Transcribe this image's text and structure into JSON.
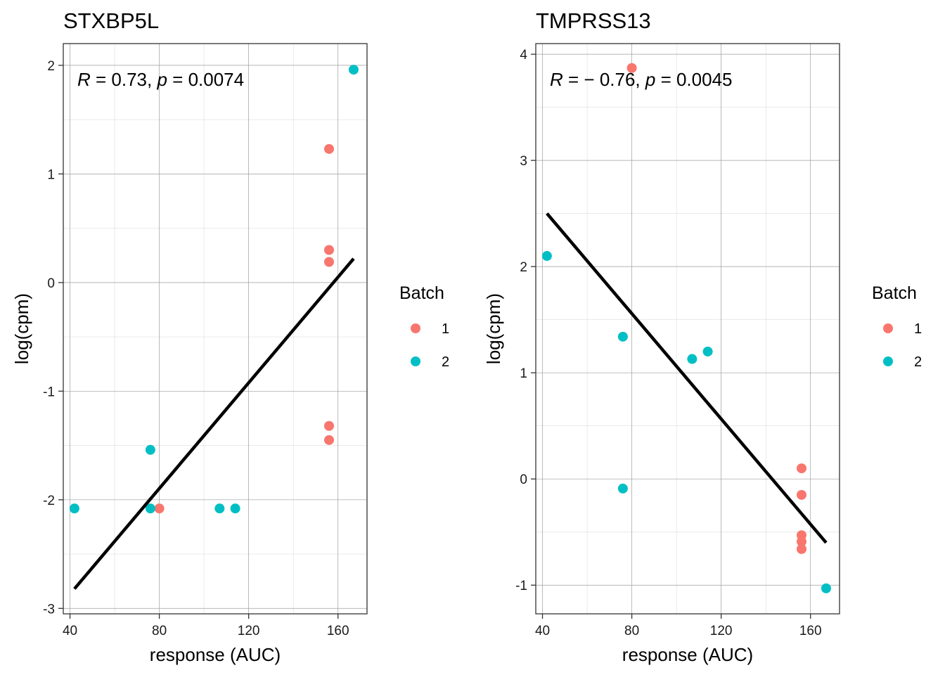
{
  "colors": {
    "batch_1": "#F8766D",
    "batch_2": "#00BFC4"
  },
  "chart_data": [
    {
      "type": "scatter",
      "title": "STXBP5L",
      "xlabel": "response (AUC)",
      "ylabel": "log(cpm)",
      "xlim": [
        37,
        173
      ],
      "ylim": [
        -3.05,
        2.2
      ],
      "xticks": [
        40,
        80,
        120,
        160
      ],
      "xtick_labels": [
        "40",
        "80",
        "120",
        "160"
      ],
      "yticks": [
        -3,
        -2,
        -1,
        0,
        1,
        2
      ],
      "ytick_labels": [
        "-3",
        "-2",
        "-1",
        "0",
        "1",
        "2"
      ],
      "annotation": {
        "r_label": "R",
        "r_text": " = 0.73, ",
        "p_label": "p",
        "p_text": " = 0.0074"
      },
      "fit_line": {
        "x": [
          42,
          167
        ],
        "y": [
          -2.82,
          0.22
        ]
      },
      "legend": {
        "title": "Batch",
        "position": "right",
        "items": [
          {
            "label": "1",
            "color": "#F8766D"
          },
          {
            "label": "2",
            "color": "#00BFC4"
          }
        ]
      },
      "grid": true,
      "series": [
        {
          "name": "1",
          "color": "#F8766D",
          "x": [
            156,
            156,
            156,
            156,
            156,
            80
          ],
          "y": [
            1.23,
            0.3,
            0.19,
            -1.32,
            -1.45,
            -2.08
          ]
        },
        {
          "name": "2",
          "color": "#00BFC4",
          "x": [
            167,
            76,
            42,
            76,
            107,
            114
          ],
          "y": [
            1.96,
            -1.54,
            -2.08,
            -2.08,
            -2.08,
            -2.08
          ]
        }
      ]
    },
    {
      "type": "scatter",
      "title": "TMPRSS13",
      "xlabel": "response (AUC)",
      "ylabel": "log(cpm)",
      "xlim": [
        37,
        173
      ],
      "ylim": [
        -1.27,
        4.1
      ],
      "xticks": [
        40,
        80,
        120,
        160
      ],
      "xtick_labels": [
        "40",
        "80",
        "120",
        "160"
      ],
      "yticks": [
        -1,
        0,
        1,
        2,
        3,
        4
      ],
      "ytick_labels": [
        "-1",
        "0",
        "1",
        "2",
        "3",
        "4"
      ],
      "annotation": {
        "r_label": "R",
        "r_text": " = − 0.76, ",
        "p_label": "p",
        "p_text": " = 0.0045"
      },
      "fit_line": {
        "x": [
          42,
          167
        ],
        "y": [
          2.5,
          -0.6
        ]
      },
      "legend": {
        "title": "Batch",
        "position": "right",
        "items": [
          {
            "label": "1",
            "color": "#F8766D"
          },
          {
            "label": "2",
            "color": "#00BFC4"
          }
        ]
      },
      "grid": true,
      "series": [
        {
          "name": "1",
          "color": "#F8766D",
          "x": [
            80,
            156,
            156,
            156,
            156,
            156
          ],
          "y": [
            3.87,
            0.1,
            -0.15,
            -0.53,
            -0.59,
            -0.66
          ]
        },
        {
          "name": "2",
          "color": "#00BFC4",
          "x": [
            42,
            76,
            107,
            114,
            76,
            167
          ],
          "y": [
            2.1,
            1.34,
            1.13,
            1.2,
            -0.09,
            -1.03
          ]
        }
      ]
    }
  ]
}
